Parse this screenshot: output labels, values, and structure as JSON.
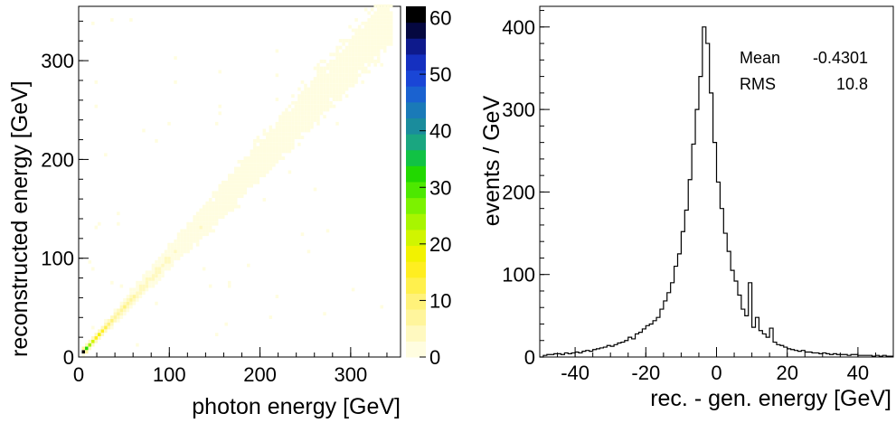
{
  "chart_data": [
    {
      "type": "heatmap",
      "xlabel": "photon energy [GeV]",
      "ylabel": "reconstructed energy [GeV]",
      "xlim": [
        0,
        355
      ],
      "ylim": [
        0,
        355
      ],
      "xticks": [
        0,
        100,
        200,
        300
      ],
      "yticks": [
        0,
        100,
        200,
        300
      ],
      "colorbar": {
        "range": [
          0,
          62
        ],
        "ticks": [
          0,
          10,
          20,
          30,
          40,
          50,
          60
        ],
        "colors": [
          "#fffde0",
          "#fff9c0",
          "#fff59c",
          "#fff27a",
          "#fff04d",
          "#ffee20",
          "#f2f200",
          "#d0f500",
          "#a8f500",
          "#7cf200",
          "#4de800",
          "#22d800",
          "#11c244",
          "#1aa680",
          "#1a8c9c",
          "#1a7ab8",
          "#1a62d0",
          "#1a46d6",
          "#1530c0",
          "#0e1a8c",
          "#050840",
          "#000000"
        ]
      },
      "ridge": {
        "slope": 1.0,
        "spread": 0.07
      },
      "peak_count": 60
    },
    {
      "type": "histogram",
      "xlabel": "rec. - gen. energy [GeV]",
      "ylabel": "events / GeV",
      "xlim": [
        -50,
        50
      ],
      "ylim": [
        0,
        425
      ],
      "xticks": [
        -40,
        -20,
        0,
        20,
        40
      ],
      "yticks": [
        0,
        100,
        200,
        300,
        400
      ],
      "bin_edges_start": -50,
      "bin_width": 1,
      "counts": [
        0,
        2,
        3,
        3,
        4,
        4,
        3,
        5,
        4,
        5,
        6,
        5,
        7,
        8,
        7,
        9,
        10,
        11,
        12,
        14,
        13,
        15,
        17,
        18,
        20,
        24,
        22,
        28,
        30,
        34,
        38,
        40,
        44,
        48,
        58,
        68,
        78,
        90,
        110,
        125,
        152,
        178,
        215,
        258,
        300,
        340,
        400,
        380,
        320,
        260,
        212,
        180,
        150,
        128,
        105,
        92,
        75,
        58,
        50,
        90,
        36,
        48,
        32,
        28,
        24,
        35,
        18,
        15,
        14,
        12,
        10,
        9,
        8,
        7,
        8,
        6,
        6,
        5,
        5,
        4,
        5,
        4,
        3,
        4,
        3,
        3,
        3,
        2,
        3,
        3,
        2,
        2,
        2,
        2,
        1,
        2,
        1,
        2,
        1,
        1
      ],
      "stats": [
        {
          "label": "Mean",
          "value": "-0.4301"
        },
        {
          "label": "RMS",
          "value": "10.8"
        }
      ]
    }
  ]
}
